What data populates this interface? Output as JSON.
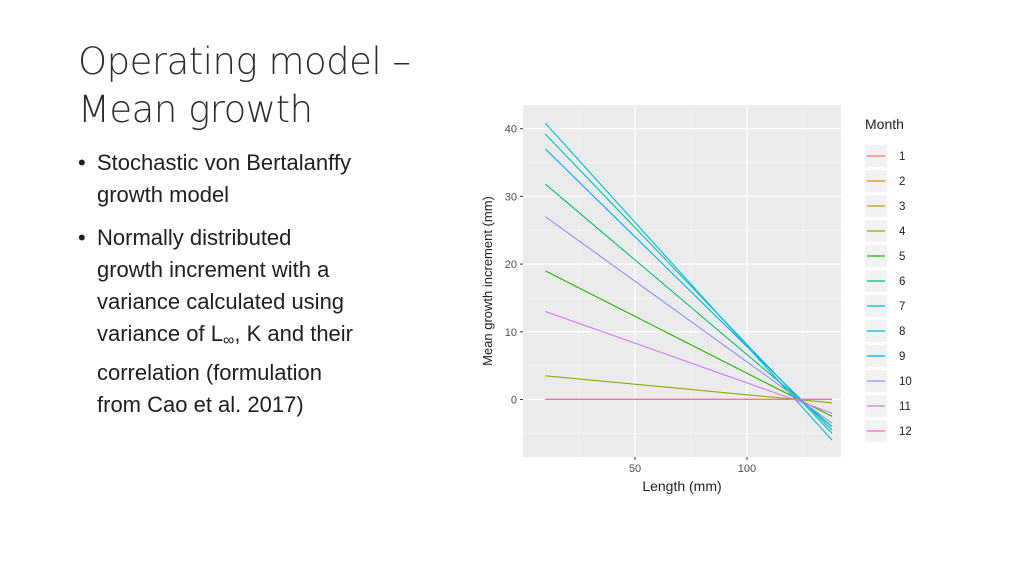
{
  "slide": {
    "title_line1": "Operating model –",
    "title_line2": "Mean growth",
    "bullets": [
      {
        "lines": [
          "Stochastic von Bertalanffy",
          "growth model"
        ]
      },
      {
        "lines": [
          "Normally distributed",
          "growth increment with a",
          "variance calculated using"
        ],
        "line4_pre": "variance of L",
        "line4_sub": "∞",
        "line4_post": ", K and their",
        "lines_after": [
          "correlation (formulation",
          "from Cao et al. 2017)"
        ]
      }
    ],
    "bullet_glyph": "•"
  },
  "chart_data": {
    "type": "line",
    "title": "",
    "xlabel": "Length (mm)",
    "ylabel": "Mean growth increment (mm)",
    "xlim": [
      0,
      142
    ],
    "ylim": [
      -8.5,
      43.5
    ],
    "xticks": [
      50,
      100
    ],
    "yticks": [
      0,
      10,
      20,
      30,
      40
    ],
    "grid": true,
    "legend_title": "Month",
    "legend_position": "right",
    "x_start": 10,
    "x_end": 138,
    "series": [
      {
        "name": "1",
        "color": "#F8766D",
        "start": 0.0,
        "end": 0.0
      },
      {
        "name": "2",
        "color": "#E18A00",
        "start": 0.0,
        "end": 0.0
      },
      {
        "name": "3",
        "color": "#BE9C00",
        "start": 0.0,
        "end": 0.0
      },
      {
        "name": "4",
        "color": "#8CAB00",
        "start": 3.5,
        "end": -0.5
      },
      {
        "name": "5",
        "color": "#24B700",
        "start": 19.0,
        "end": -2.5
      },
      {
        "name": "6",
        "color": "#00BE70",
        "start": 31.8,
        "end": -4.0
      },
      {
        "name": "7",
        "color": "#00C1AB",
        "start": 39.2,
        "end": -5.0
      },
      {
        "name": "8",
        "color": "#00BBDA",
        "start": 40.8,
        "end": -6.0
      },
      {
        "name": "9",
        "color": "#00ACFC",
        "start": 37.0,
        "end": -4.5
      },
      {
        "name": "10",
        "color": "#8B93FF",
        "start": 27.0,
        "end": -3.5
      },
      {
        "name": "11",
        "color": "#D575FE",
        "start": 13.0,
        "end": -2.0
      },
      {
        "name": "12",
        "color": "#F962DD",
        "start": 0.0,
        "end": 0.0
      }
    ]
  }
}
